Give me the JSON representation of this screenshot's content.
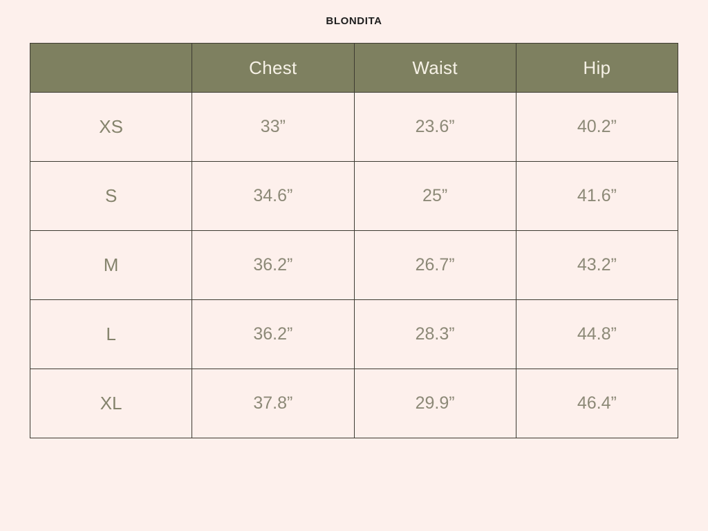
{
  "brand": {
    "title": "BLONDITA"
  },
  "theme": {
    "page_background": "#FDF0EC",
    "header_background": "#7E8060",
    "header_text_color": "#F6F1E6",
    "cell_text_color": "#8C8977",
    "size_text_color": "#84836C",
    "border_color": "#3C3A31",
    "title_color": "#1E1E1E"
  },
  "table": {
    "headers": [
      "",
      "Chest",
      "Waist",
      "Hip"
    ],
    "rows": [
      {
        "size": "XS",
        "values": [
          "33”",
          "23.6”",
          "40.2”"
        ]
      },
      {
        "size": "S",
        "values": [
          "34.6”",
          "25”",
          "41.6”"
        ]
      },
      {
        "size": "M",
        "values": [
          "36.2”",
          "26.7”",
          "43.2”"
        ]
      },
      {
        "size": "L",
        "values": [
          "36.2”",
          "28.3”",
          "44.8”"
        ]
      },
      {
        "size": "XL",
        "values": [
          "37.8”",
          "29.9”",
          "46.4”"
        ]
      }
    ]
  },
  "chart_data": {
    "type": "table",
    "title": "BLONDITA",
    "columns": [
      "",
      "Chest",
      "Waist",
      "Hip"
    ],
    "rows": [
      [
        "XS",
        "33”",
        "23.6”",
        "40.2”"
      ],
      [
        "S",
        "34.6”",
        "25”",
        "41.6”"
      ],
      [
        "M",
        "36.2”",
        "26.7”",
        "43.2”"
      ],
      [
        "L",
        "36.2”",
        "28.3”",
        "44.8”"
      ],
      [
        "XL",
        "37.8”",
        "29.9”",
        "46.4”"
      ]
    ]
  }
}
